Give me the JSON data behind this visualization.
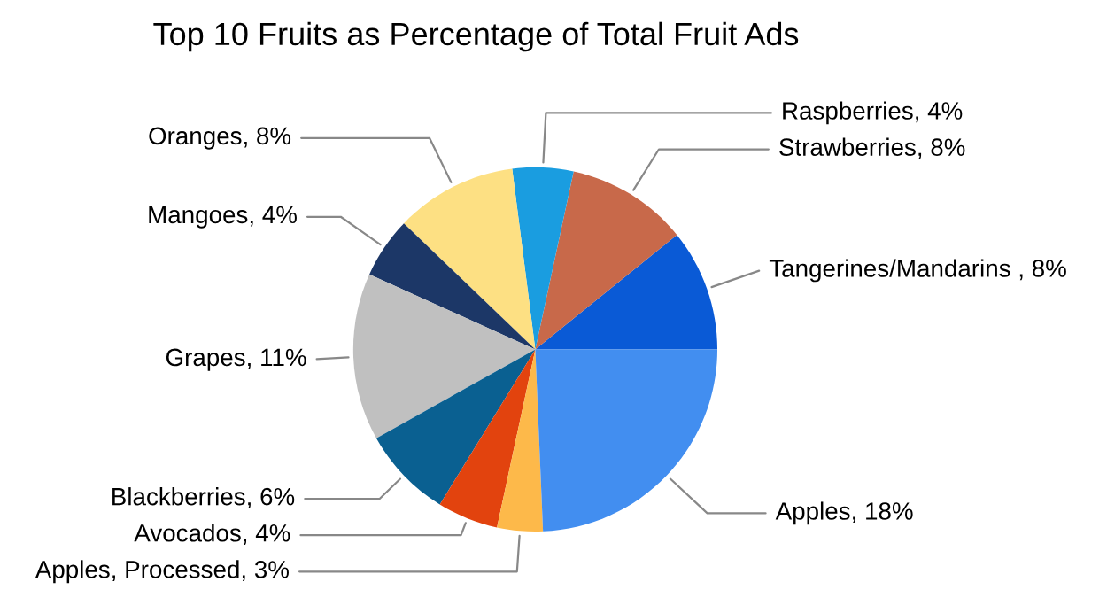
{
  "chart_data": {
    "type": "pie",
    "title": "Top 10 Fruits as Percentage of Total Fruit Ads",
    "categories": [
      "Tangerines/Mandarins ",
      "Strawberries",
      "Raspberries",
      "Oranges",
      "Mangoes",
      "Grapes",
      "Blackberries",
      "Avocados",
      "Apples, Processed",
      "Apples"
    ],
    "values": [
      8,
      8,
      4,
      8,
      4,
      11,
      6,
      4,
      3,
      18
    ],
    "colors": [
      "#0a5ad6",
      "#c8694a",
      "#1a9de0",
      "#fde083",
      "#1c3767",
      "#c0c0c0",
      "#0a6091",
      "#e2430e",
      "#fdb94a",
      "#428ef0"
    ],
    "value_labels": [
      "8%",
      "8%",
      "4%",
      "8%",
      "4%",
      "11%",
      "6%",
      "4%",
      "3%",
      "18%"
    ]
  }
}
